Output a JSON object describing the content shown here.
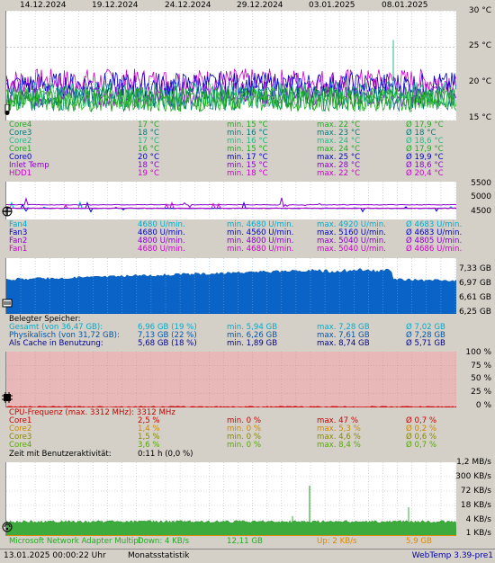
{
  "chart_data": [
    {
      "type": "line",
      "name": "temperatures",
      "x_dates": [
        "14.12.2024",
        "19.12.2024",
        "24.12.2024",
        "29.12.2024",
        "03.01.2025",
        "08.01.2025"
      ],
      "yticks": [
        "30 °C",
        "25 °C",
        "20 °C",
        "15 °C"
      ],
      "ylim": [
        15,
        30
      ],
      "series": [
        {
          "name": "Core4",
          "color": "#22aa22",
          "cur": "17 °C",
          "min": "min. 15 °C",
          "max": "max. 22 °C",
          "avg": "Ø 17,9 °C",
          "level": 17.9
        },
        {
          "name": "Core3",
          "color": "#007a7a",
          "cur": "18 °C",
          "min": "min. 16 °C",
          "max": "max. 23 °C",
          "avg": "Ø 18 °C",
          "level": 18.0
        },
        {
          "name": "Core2",
          "color": "#22bb88",
          "cur": "17 °C",
          "min": "min. 16 °C",
          "max": "max. 24 °C",
          "avg": "Ø 18,6 °C",
          "level": 18.6
        },
        {
          "name": "Core1",
          "color": "#22aa22",
          "cur": "16 °C",
          "min": "min. 15 °C",
          "max": "max. 24 °C",
          "avg": "Ø 17,9 °C",
          "level": 17.9
        },
        {
          "name": "Core0",
          "color": "#0000cc",
          "cur": "20 °C",
          "min": "min. 17 °C",
          "max": "max. 25 °C",
          "avg": "Ø 19,9 °C",
          "level": 19.9
        },
        {
          "name": "Inlet Temp",
          "color": "#8800cc",
          "cur": "18 °C",
          "min": "min. 15 °C",
          "max": "max. 28 °C",
          "avg": "Ø 18,6 °C",
          "level": 18.6
        },
        {
          "name": "HDD1",
          "color": "#cc00cc",
          "cur": "19 °C",
          "min": "min. 18 °C",
          "max": "max. 22 °C",
          "avg": "Ø 20,4 °C",
          "level": 20.4
        }
      ]
    },
    {
      "type": "line",
      "name": "fans",
      "yticks": [
        "5500",
        "5000",
        "4500"
      ],
      "ylim": [
        4300,
        5600
      ],
      "series": [
        {
          "name": "Fan4",
          "color": "#00aacc",
          "cur": "4680 U/min.",
          "min": "min. 4680 U/min.",
          "max": "max. 4920 U/min.",
          "avg": "Ø 4683 U/min.",
          "level": 4683
        },
        {
          "name": "Fan3",
          "color": "#0000cc",
          "cur": "4680 U/min.",
          "min": "min. 4560 U/min.",
          "max": "max. 5160 U/min.",
          "avg": "Ø 4683 U/min.",
          "level": 4683
        },
        {
          "name": "Fan2",
          "color": "#8800cc",
          "cur": "4800 U/min.",
          "min": "min. 4800 U/min.",
          "max": "max. 5040 U/min.",
          "avg": "Ø 4805 U/min.",
          "level": 4805
        },
        {
          "name": "Fan1",
          "color": "#cc00cc",
          "cur": "4680 U/min.",
          "min": "min. 4680 U/min.",
          "max": "max. 5040 U/min.",
          "avg": "Ø 4686 U/min.",
          "level": 4686
        }
      ]
    },
    {
      "type": "area",
      "name": "memory",
      "yticks": [
        "7,33 GB",
        "6,97 GB",
        "6,61 GB",
        "6,25 GB"
      ],
      "ylim": [
        6.25,
        7.33
      ],
      "title": "Belegter Speicher:",
      "series": [
        {
          "name": "Gesamt (von 36,47 GB):",
          "color": "#00aacc",
          "cur": "6,96 GB (19 %)",
          "min": "min. 5,94 GB",
          "max": "max. 7,28 GB",
          "avg": "Ø 7,02 GB"
        },
        {
          "name": "Physikalisch (von 31,72 GB):",
          "color": "#0055aa",
          "cur": "7,13 GB (22 %)",
          "min": "min. 6,26 GB",
          "max": "max. 7,61 GB",
          "avg": "Ø 7,28 GB"
        },
        {
          "name": "Als Cache in Benutzung:",
          "color": "#000088",
          "cur": "5,68 GB (18 %)",
          "min": "min. 1,89 GB",
          "max": "max. 8,74 GB",
          "avg": "Ø 5,71 GB"
        }
      ]
    },
    {
      "type": "area",
      "name": "cpu",
      "yticks": [
        "100 %",
        "75 %",
        "50 %",
        "25 %",
        "0 %"
      ],
      "ylim": [
        0,
        100
      ],
      "title": "CPU-Frequenz (max. 3312 MHz): 3312 MHz",
      "series": [
        {
          "name": "Core1",
          "color": "#cc0000",
          "cur": "2,5 %",
          "min": "min. 0 %",
          "max": "max. 47 %",
          "avg": "Ø 0,7 %"
        },
        {
          "name": "Core2",
          "color": "#cc8800",
          "cur": "1,4 %",
          "min": "min. 0 %",
          "max": "max. 5,3 %",
          "avg": "Ø 0,2 %"
        },
        {
          "name": "Core3",
          "color": "#888800",
          "cur": "1,5 %",
          "min": "min. 0 %",
          "max": "max. 4,6 %",
          "avg": "Ø 0,6 %"
        },
        {
          "name": "Core4",
          "color": "#55aa00",
          "cur": "3,6 %",
          "min": "min. 0 %",
          "max": "max. 8,4 %",
          "avg": "Ø 0,7 %"
        }
      ],
      "activity_label": "Zeit mit Benutzeraktivität:",
      "activity_value": "0:11 h (0,0 %)"
    },
    {
      "type": "area",
      "name": "network",
      "yticks": [
        "1,2 MB/s",
        "300 KB/s",
        "72 KB/s",
        "18 KB/s",
        "4 KB/s",
        "1 KB/s"
      ],
      "adapter": "Microsoft Network Adapter Multipl",
      "down": "Down: 4 KB/s",
      "down_total": "12,11 GB",
      "up": "Up: 2 KB/s",
      "up_total": "5,9 GB"
    }
  ],
  "footer": {
    "timestamp": "13.01.2025 00:00:22 Uhr",
    "mode": "Monatsstatistik",
    "version": "WebTemp 3.39-pre1"
  },
  "colors": {
    "temp_grid": "#b0b0b0",
    "cpu_bg": "#e8b8b8",
    "mem_fill": "#0a64c8",
    "net_fill": "#3caa3c"
  }
}
